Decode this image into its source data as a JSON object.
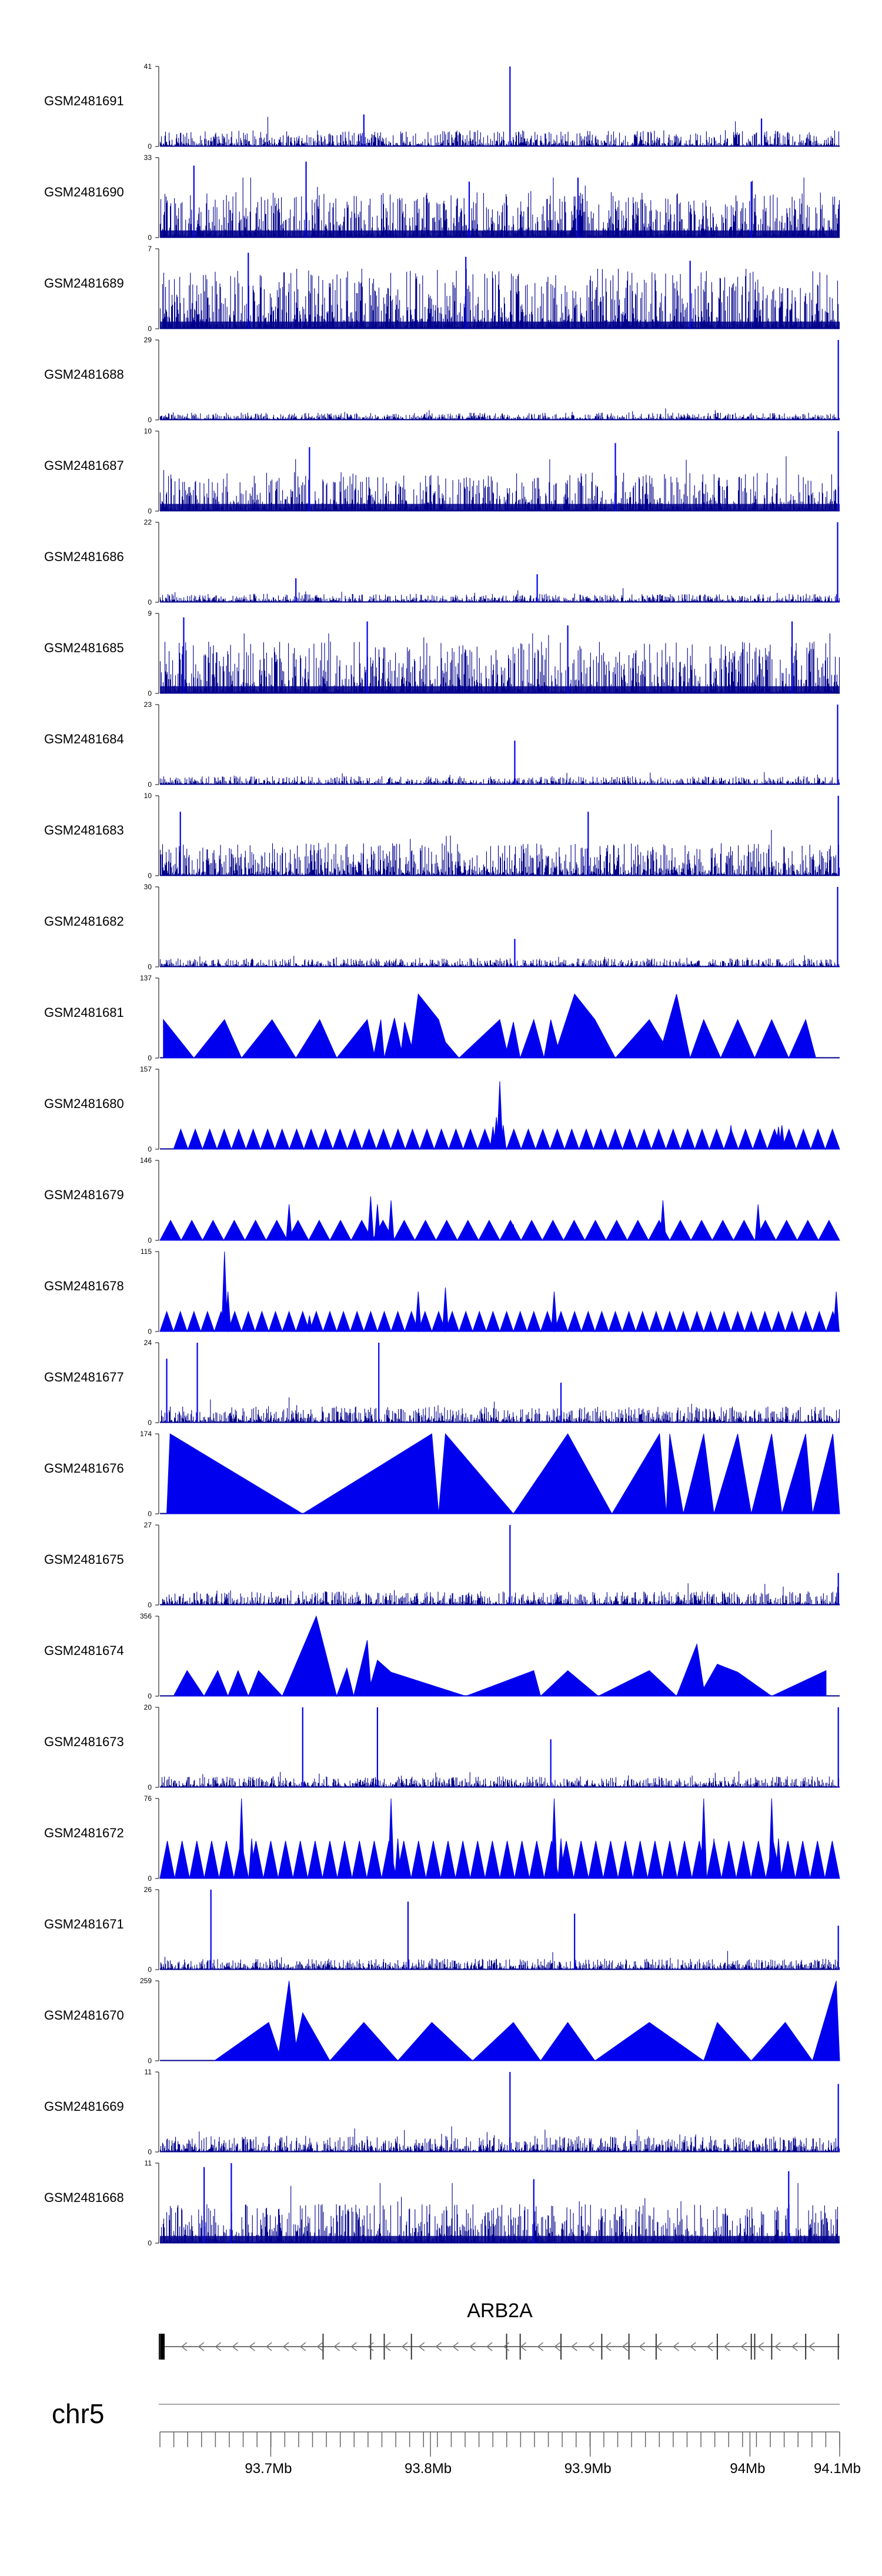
{
  "chart_data": {
    "type": "area",
    "region": {
      "chromosome": "chr5"
    },
    "x_tick_labels": [
      "93.7Mb",
      "93.8Mb",
      "93.9Mb",
      "94Mb",
      "94.1Mb"
    ],
    "gene": {
      "name": "ARB2A",
      "strand": "-"
    },
    "colors": {
      "signal": "#0000ee",
      "dense": "#00008b"
    },
    "tracks": [
      {
        "name": "GSM2481691",
        "ymax": 41,
        "ymin_label": "0",
        "style": "spiky",
        "density": 0.12,
        "peaks": [
          [
            0.515,
            1.0,
            0.002
          ],
          [
            0.3,
            0.4,
            0.003
          ],
          [
            0.885,
            0.35,
            0.004
          ]
        ]
      },
      {
        "name": "GSM2481690",
        "ymax": 33,
        "ymin_label": "0",
        "style": "spiky",
        "density": 0.35,
        "peaks": [
          [
            0.05,
            0.9,
            0.003
          ],
          [
            0.215,
            0.95,
            0.002
          ],
          [
            0.615,
            0.75,
            0.003
          ],
          [
            0.87,
            0.7,
            0.003
          ],
          [
            0.455,
            0.7,
            0.003
          ]
        ]
      },
      {
        "name": "GSM2481689",
        "ymax": 7,
        "ymin_label": "0",
        "style": "spiky",
        "density": 0.45,
        "peaks": [
          [
            0.13,
            0.95,
            0.002
          ],
          [
            0.45,
            0.9,
            0.002
          ],
          [
            0.78,
            0.85,
            0.002
          ]
        ]
      },
      {
        "name": "GSM2481688",
        "ymax": 29,
        "ymin_label": "0",
        "style": "spiky",
        "density": 0.05,
        "peaks": [
          [
            0.998,
            1.0,
            0.002
          ]
        ]
      },
      {
        "name": "GSM2481687",
        "ymax": 10,
        "ymin_label": "0",
        "style": "spiky",
        "density": 0.3,
        "peaks": [
          [
            0.998,
            1.0,
            0.002
          ],
          [
            0.22,
            0.8,
            0.002
          ],
          [
            0.67,
            0.85,
            0.002
          ]
        ]
      },
      {
        "name": "GSM2481686",
        "ymax": 22,
        "ymin_label": "0",
        "style": "spiky",
        "density": 0.06,
        "peaks": [
          [
            0.997,
            1.0,
            0.003
          ],
          [
            0.555,
            0.35,
            0.003
          ],
          [
            0.2,
            0.3,
            0.003
          ]
        ]
      },
      {
        "name": "GSM2481685",
        "ymax": 9,
        "ymin_label": "0",
        "style": "spiky",
        "density": 0.4,
        "peaks": [
          [
            0.035,
            0.95,
            0.002
          ],
          [
            0.305,
            0.9,
            0.002
          ],
          [
            0.6,
            0.85,
            0.002
          ],
          [
            0.93,
            0.9,
            0.002
          ]
        ]
      },
      {
        "name": "GSM2481684",
        "ymax": 23,
        "ymin_label": "0",
        "style": "spiky",
        "density": 0.06,
        "peaks": [
          [
            0.997,
            1.0,
            0.003
          ],
          [
            0.522,
            0.55,
            0.004
          ]
        ]
      },
      {
        "name": "GSM2481683",
        "ymax": 10,
        "ymin_label": "0",
        "style": "spiky",
        "density": 0.25,
        "peaks": [
          [
            0.998,
            1.0,
            0.002
          ],
          [
            0.03,
            0.8,
            0.002
          ],
          [
            0.63,
            0.8,
            0.002
          ]
        ]
      },
      {
        "name": "GSM2481682",
        "ymax": 30,
        "ymin_label": "0",
        "style": "spiky",
        "density": 0.06,
        "peaks": [
          [
            0.997,
            1.0,
            0.003
          ],
          [
            0.522,
            0.35,
            0.004
          ]
        ]
      },
      {
        "name": "GSM2481681",
        "ymax": 137,
        "ymin_label": "0",
        "style": "triangles",
        "range": [
          0.005,
          0.965
        ],
        "nodes": [
          [
            0.005,
            0.48
          ],
          [
            0.05,
            0
          ],
          [
            0.095,
            0.48
          ],
          [
            0.12,
            0
          ],
          [
            0.165,
            0.48
          ],
          [
            0.2,
            0
          ],
          [
            0.235,
            0.48
          ],
          [
            0.26,
            0
          ],
          [
            0.305,
            0.48
          ],
          [
            0.315,
            0.05
          ],
          [
            0.325,
            0.48
          ],
          [
            0.33,
            0
          ],
          [
            0.345,
            0.5
          ],
          [
            0.355,
            0.1
          ],
          [
            0.36,
            0.45
          ],
          [
            0.37,
            0.15
          ],
          [
            0.38,
            0.8
          ],
          [
            0.41,
            0.48
          ],
          [
            0.42,
            0.2
          ],
          [
            0.44,
            0
          ],
          [
            0.5,
            0.48
          ],
          [
            0.51,
            0.1
          ],
          [
            0.52,
            0.45
          ],
          [
            0.53,
            0
          ],
          [
            0.55,
            0.48
          ],
          [
            0.565,
            0
          ],
          [
            0.575,
            0.48
          ],
          [
            0.585,
            0.15
          ],
          [
            0.61,
            0.8
          ],
          [
            0.64,
            0.48
          ],
          [
            0.67,
            0
          ],
          [
            0.72,
            0.48
          ],
          [
            0.74,
            0.2
          ],
          [
            0.76,
            0.8
          ],
          [
            0.78,
            0
          ],
          [
            0.8,
            0.48
          ],
          [
            0.825,
            0
          ],
          [
            0.85,
            0.48
          ],
          [
            0.875,
            0
          ],
          [
            0.9,
            0.48
          ],
          [
            0.925,
            0
          ],
          [
            0.95,
            0.48
          ],
          [
            0.965,
            0
          ]
        ]
      },
      {
        "name": "GSM2481680",
        "ymax": 157,
        "ymin_label": "0",
        "style": "zigzag",
        "range": [
          0.02,
          1.0
        ],
        "teeth": 46,
        "tooth_h": 0.25,
        "nodes": [
          [
            0.49,
            0.28
          ],
          [
            0.495,
            0.4
          ],
          [
            0.5,
            0.85
          ],
          [
            0.505,
            0.3
          ],
          [
            0.52,
            0.15
          ],
          [
            0.84,
            0.3
          ],
          [
            0.91,
            0.28
          ],
          [
            0.915,
            0.3
          ]
        ]
      },
      {
        "name": "GSM2481679",
        "ymax": 146,
        "ymin_label": "0",
        "style": "zigzag",
        "range": [
          0.0,
          1.0
        ],
        "teeth": 32,
        "tooth_h": 0.25,
        "nodes": [
          [
            0.19,
            0.45
          ],
          [
            0.31,
            0.55
          ],
          [
            0.32,
            0.45
          ],
          [
            0.34,
            0.5
          ],
          [
            0.52,
            0.2
          ],
          [
            0.74,
            0.5
          ],
          [
            0.88,
            0.45
          ]
        ]
      },
      {
        "name": "GSM2481678",
        "ymax": 115,
        "ymin_label": "0",
        "style": "zigzag",
        "range": [
          0.0,
          1.0
        ],
        "teeth": 50,
        "tooth_h": 0.25,
        "nodes": [
          [
            0.095,
            1.0
          ],
          [
            0.1,
            0.5
          ],
          [
            0.22,
            0.2
          ],
          [
            0.38,
            0.5
          ],
          [
            0.42,
            0.55
          ],
          [
            0.58,
            0.5
          ],
          [
            0.995,
            0.5
          ]
        ]
      },
      {
        "name": "GSM2481677",
        "ymax": 24,
        "ymin_label": "0",
        "style": "spiky",
        "density": 0.12,
        "peaks": [
          [
            0.055,
            1.0,
            0.002
          ],
          [
            0.322,
            1.0,
            0.002
          ],
          [
            0.59,
            0.5,
            0.002
          ],
          [
            0.01,
            0.8,
            0.003
          ]
        ]
      },
      {
        "name": "GSM2481676",
        "ymax": 174,
        "ymin_label": "0",
        "style": "triangles",
        "range": [
          0.01,
          1.0
        ],
        "nodes": [
          [
            0.01,
            0.0
          ],
          [
            0.015,
            1.0
          ],
          [
            0.21,
            0.0
          ],
          [
            0.4,
            1.0
          ],
          [
            0.41,
            0.0
          ],
          [
            0.42,
            1.0
          ],
          [
            0.52,
            0.0
          ],
          [
            0.6,
            1.0
          ],
          [
            0.665,
            0.0
          ],
          [
            0.735,
            1.0
          ],
          [
            0.745,
            0.0
          ],
          [
            0.75,
            1.0
          ],
          [
            0.77,
            0.0
          ],
          [
            0.8,
            1.0
          ],
          [
            0.815,
            0.0
          ],
          [
            0.85,
            1.0
          ],
          [
            0.87,
            0.0
          ],
          [
            0.9,
            1.0
          ],
          [
            0.915,
            0.0
          ],
          [
            0.95,
            1.0
          ],
          [
            0.96,
            0.0
          ],
          [
            0.99,
            1.0
          ],
          [
            1.0,
            0.0
          ]
        ]
      },
      {
        "name": "GSM2481675",
        "ymax": 27,
        "ymin_label": "0",
        "style": "spiky",
        "density": 0.1,
        "peaks": [
          [
            0.515,
            1.0,
            0.002
          ],
          [
            0.998,
            0.4,
            0.002
          ]
        ]
      },
      {
        "name": "GSM2481674",
        "ymax": 356,
        "ymin_label": "0",
        "style": "triangles",
        "range": [
          0.02,
          0.98
        ],
        "nodes": [
          [
            0.02,
            0
          ],
          [
            0.04,
            0.32
          ],
          [
            0.065,
            0
          ],
          [
            0.085,
            0.32
          ],
          [
            0.1,
            0
          ],
          [
            0.115,
            0.32
          ],
          [
            0.13,
            0
          ],
          [
            0.145,
            0.32
          ],
          [
            0.18,
            0
          ],
          [
            0.23,
            1.0
          ],
          [
            0.26,
            0
          ],
          [
            0.275,
            0.35
          ],
          [
            0.285,
            0
          ],
          [
            0.305,
            0.7
          ],
          [
            0.31,
            0.15
          ],
          [
            0.32,
            0.45
          ],
          [
            0.34,
            0.3
          ],
          [
            0.45,
            0
          ],
          [
            0.55,
            0.32
          ],
          [
            0.56,
            0
          ],
          [
            0.6,
            0.32
          ],
          [
            0.645,
            0
          ],
          [
            0.72,
            0.32
          ],
          [
            0.76,
            0
          ],
          [
            0.79,
            0.65
          ],
          [
            0.8,
            0.1
          ],
          [
            0.82,
            0.4
          ],
          [
            0.85,
            0.3
          ],
          [
            0.9,
            0
          ],
          [
            0.98,
            0.32
          ],
          [
            0.98,
            0
          ]
        ]
      },
      {
        "name": "GSM2481673",
        "ymax": 20,
        "ymin_label": "0",
        "style": "spiky",
        "density": 0.08,
        "peaks": [
          [
            0.21,
            1.0,
            0.002
          ],
          [
            0.32,
            1.0,
            0.002
          ],
          [
            0.998,
            1.0,
            0.002
          ],
          [
            0.575,
            0.6,
            0.002
          ]
        ]
      },
      {
        "name": "GSM2481672",
        "ymax": 76,
        "ymin_label": "0",
        "style": "zigzag",
        "range": [
          0.0,
          1.0
        ],
        "teeth": 46,
        "tooth_h": 0.47,
        "nodes": [
          [
            0.12,
            1.0
          ],
          [
            0.135,
            0.5
          ],
          [
            0.34,
            1.0
          ],
          [
            0.35,
            0.5
          ],
          [
            0.58,
            1.0
          ],
          [
            0.59,
            0.5
          ],
          [
            0.8,
            1.0
          ],
          [
            0.815,
            0.5
          ],
          [
            0.9,
            1.0
          ],
          [
            0.91,
            0.5
          ]
        ]
      },
      {
        "name": "GSM2481671",
        "ymax": 26,
        "ymin_label": "0",
        "style": "spiky",
        "density": 0.08,
        "peaks": [
          [
            0.075,
            1.0,
            0.002
          ],
          [
            0.365,
            0.85,
            0.002
          ],
          [
            0.61,
            0.7,
            0.002
          ],
          [
            0.998,
            0.55,
            0.002
          ]
        ]
      },
      {
        "name": "GSM2481670",
        "ymax": 259,
        "ymin_label": "0",
        "style": "triangles",
        "range": [
          0.08,
          1.0
        ],
        "nodes": [
          [
            0.08,
            0
          ],
          [
            0.16,
            0.48
          ],
          [
            0.175,
            0.1
          ],
          [
            0.19,
            1.0
          ],
          [
            0.2,
            0.2
          ],
          [
            0.21,
            0.6
          ],
          [
            0.23,
            0.3
          ],
          [
            0.25,
            0
          ],
          [
            0.3,
            0.48
          ],
          [
            0.35,
            0
          ],
          [
            0.4,
            0.48
          ],
          [
            0.46,
            0
          ],
          [
            0.52,
            0.48
          ],
          [
            0.56,
            0
          ],
          [
            0.6,
            0.48
          ],
          [
            0.64,
            0
          ],
          [
            0.72,
            0.48
          ],
          [
            0.8,
            0
          ],
          [
            0.82,
            0.48
          ],
          [
            0.87,
            0
          ],
          [
            0.92,
            0.48
          ],
          [
            0.96,
            0
          ],
          [
            0.995,
            1.0
          ],
          [
            1.0,
            0
          ]
        ]
      },
      {
        "name": "GSM2481669",
        "ymax": 11,
        "ymin_label": "0",
        "style": "spiky",
        "density": 0.12,
        "peaks": [
          [
            0.515,
            1.0,
            0.002
          ],
          [
            0.998,
            0.85,
            0.002
          ]
        ]
      },
      {
        "name": "GSM2481668",
        "ymax": 11,
        "ymin_label": "0",
        "style": "spiky",
        "density": 0.3,
        "peaks": [
          [
            0.065,
            0.95,
            0.002
          ],
          [
            0.105,
            1.0,
            0.002
          ],
          [
            0.925,
            0.9,
            0.002
          ],
          [
            0.55,
            0.8,
            0.002
          ]
        ]
      }
    ]
  }
}
